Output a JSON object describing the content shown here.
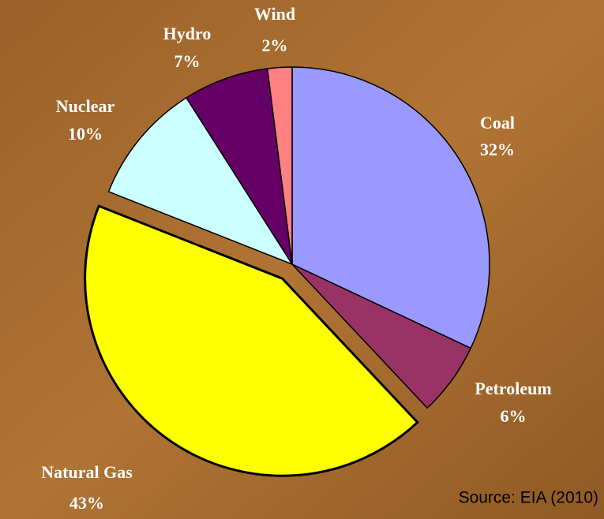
{
  "chart_data": {
    "type": "pie",
    "categories": [
      "Coal",
      "Petroleum",
      "Natural Gas",
      "Nuclear",
      "Hydro",
      "Wind"
    ],
    "values": [
      32,
      6,
      43,
      10,
      7,
      2
    ],
    "value_labels": [
      "32%",
      "6%",
      "43%",
      "10%",
      "7%",
      "2%"
    ],
    "colors": [
      "#9999ff",
      "#993366",
      "#ffff00",
      "#ccffff",
      "#660066",
      "#ff8080"
    ],
    "exploded": "Natural Gas",
    "highlight_color": "#ffff00",
    "annotation": "Source: EIA (2010)"
  }
}
